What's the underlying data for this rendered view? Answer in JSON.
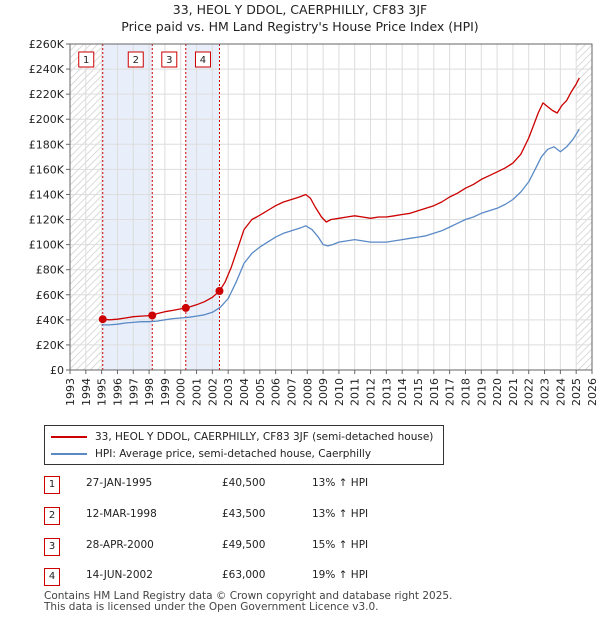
{
  "chart_data": {
    "type": "line",
    "title": "33, HEOL Y DDOL, CAERPHILLY, CF83 3JF",
    "subtitle": "Price paid vs. HM Land Registry's House Price Index (HPI)",
    "xlabel": "",
    "ylabel": "",
    "xlim": [
      1993,
      2026
    ],
    "ylim": [
      0,
      260000
    ],
    "x_ticks": [
      1993,
      1994,
      1995,
      1996,
      1997,
      1998,
      1999,
      2000,
      2001,
      2002,
      2003,
      2004,
      2005,
      2006,
      2007,
      2008,
      2009,
      2010,
      2011,
      2012,
      2013,
      2014,
      2015,
      2016,
      2017,
      2018,
      2019,
      2020,
      2021,
      2022,
      2023,
      2024,
      2025,
      2026
    ],
    "y_ticks": [
      0,
      20000,
      40000,
      60000,
      80000,
      100000,
      120000,
      140000,
      160000,
      180000,
      200000,
      220000,
      240000,
      260000
    ],
    "y_tick_labels": [
      "£0",
      "£20K",
      "£40K",
      "£60K",
      "£80K",
      "£100K",
      "£120K",
      "£140K",
      "£160K",
      "£180K",
      "£200K",
      "£220K",
      "£240K",
      "£260K"
    ],
    "grid": true,
    "series": [
      {
        "name": "33, HEOL Y DDOL, CAERPHILLY, CF83 3JF (semi-detached house)",
        "color": "#cc0000",
        "x": [
          1995.07,
          1995.5,
          1996.0,
          1996.5,
          1997.0,
          1997.5,
          1998.2,
          1998.5,
          1999.0,
          1999.5,
          2000.32,
          2000.6,
          2001.0,
          2001.5,
          2002.0,
          2002.45,
          2002.8,
          2003.2,
          2003.6,
          2004.0,
          2004.5,
          2004.8,
          2005.2,
          2005.6,
          2006.0,
          2006.5,
          2007.0,
          2007.5,
          2007.9,
          2008.2,
          2008.5,
          2008.9,
          2009.2,
          2009.5,
          2010.0,
          2010.5,
          2011.0,
          2011.5,
          2012.0,
          2012.5,
          2013.0,
          2013.5,
          2014.0,
          2014.5,
          2015.0,
          2015.5,
          2016.0,
          2016.5,
          2017.0,
          2017.5,
          2018.0,
          2018.5,
          2019.0,
          2019.5,
          2020.0,
          2020.5,
          2021.0,
          2021.5,
          2022.0,
          2022.3,
          2022.6,
          2022.9,
          2023.2,
          2023.5,
          2023.8,
          2024.1,
          2024.4,
          2024.7,
          2025.0,
          2025.2
        ],
        "values": [
          40500,
          40000,
          40500,
          41500,
          42500,
          43000,
          43500,
          45000,
          46500,
          47500,
          49500,
          50500,
          52000,
          54500,
          58000,
          63000,
          70000,
          82000,
          97000,
          112000,
          120000,
          122000,
          125000,
          128000,
          131000,
          134000,
          136000,
          138000,
          140000,
          137000,
          130000,
          122000,
          118000,
          120000,
          121000,
          122000,
          123000,
          122000,
          121000,
          122000,
          122000,
          123000,
          124000,
          125000,
          127000,
          129000,
          131000,
          134000,
          138000,
          141000,
          145000,
          148000,
          152000,
          155000,
          158000,
          161000,
          165000,
          172000,
          185000,
          195000,
          205000,
          213000,
          210000,
          207000,
          205000,
          211000,
          215000,
          222000,
          228000,
          233000
        ]
      },
      {
        "name": "HPI: Average price, semi-detached house, Caerphilly",
        "color": "#5a8ac6",
        "x": [
          1995.0,
          1995.5,
          1996.0,
          1996.5,
          1997.0,
          1997.5,
          1998.0,
          1998.5,
          1999.0,
          1999.5,
          2000.0,
          2000.5,
          2001.0,
          2001.5,
          2002.0,
          2002.5,
          2003.0,
          2003.5,
          2004.0,
          2004.5,
          2005.0,
          2005.5,
          2006.0,
          2006.5,
          2007.0,
          2007.5,
          2007.9,
          2008.3,
          2008.7,
          2009.0,
          2009.3,
          2009.6,
          2010.0,
          2010.5,
          2011.0,
          2011.5,
          2012.0,
          2012.5,
          2013.0,
          2013.5,
          2014.0,
          2014.5,
          2015.0,
          2015.5,
          2016.0,
          2016.5,
          2017.0,
          2017.5,
          2018.0,
          2018.5,
          2019.0,
          2019.5,
          2020.0,
          2020.5,
          2021.0,
          2021.5,
          2022.0,
          2022.4,
          2022.8,
          2023.2,
          2023.6,
          2024.0,
          2024.4,
          2024.8,
          2025.2
        ],
        "values": [
          36000,
          36000,
          36500,
          37500,
          38000,
          38500,
          38500,
          39000,
          40000,
          41000,
          41500,
          42000,
          43000,
          44000,
          46000,
          50000,
          57000,
          70000,
          85000,
          93000,
          98000,
          102000,
          106000,
          109000,
          111000,
          113000,
          115000,
          112000,
          106000,
          100000,
          99000,
          100000,
          102000,
          103000,
          104000,
          103000,
          102000,
          102000,
          102000,
          103000,
          104000,
          105000,
          106000,
          107000,
          109000,
          111000,
          114000,
          117000,
          120000,
          122000,
          125000,
          127000,
          129000,
          132000,
          136000,
          142000,
          150000,
          160000,
          170000,
          176000,
          178000,
          174000,
          178000,
          184000,
          192000
        ]
      }
    ],
    "transactions": [
      {
        "label": "1",
        "x": 1995.07,
        "value": 40500
      },
      {
        "label": "2",
        "x": 1998.2,
        "value": 43500
      },
      {
        "label": "3",
        "x": 2000.32,
        "value": 49500
      },
      {
        "label": "4",
        "x": 2002.45,
        "value": 63000
      }
    ],
    "shaded_ranges": [
      [
        1995.07,
        1998.2
      ],
      [
        2000.32,
        2002.45
      ]
    ],
    "hatched_ranges": [
      [
        1993,
        1995.0
      ],
      [
        2025.0,
        2026
      ]
    ]
  },
  "legend": {
    "items": [
      {
        "label": "33, HEOL Y DDOL, CAERPHILLY, CF83 3JF (semi-detached house)",
        "color": "#cc0000"
      },
      {
        "label": "HPI: Average price, semi-detached house, Caerphilly",
        "color": "#5a8ac6"
      }
    ]
  },
  "sales": [
    {
      "num": "1",
      "date": "27-JAN-1995",
      "price": "£40,500",
      "hpi": "13% ↑ HPI"
    },
    {
      "num": "2",
      "date": "12-MAR-1998",
      "price": "£43,500",
      "hpi": "13% ↑ HPI"
    },
    {
      "num": "3",
      "date": "28-APR-2000",
      "price": "£49,500",
      "hpi": "15% ↑ HPI"
    },
    {
      "num": "4",
      "date": "14-JUN-2002",
      "price": "£63,000",
      "hpi": "19% ↑ HPI"
    }
  ],
  "footer": {
    "line1": "Contains HM Land Registry data © Crown copyright and database right 2025.",
    "line2": "This data is licensed under the Open Government Licence v3.0."
  }
}
